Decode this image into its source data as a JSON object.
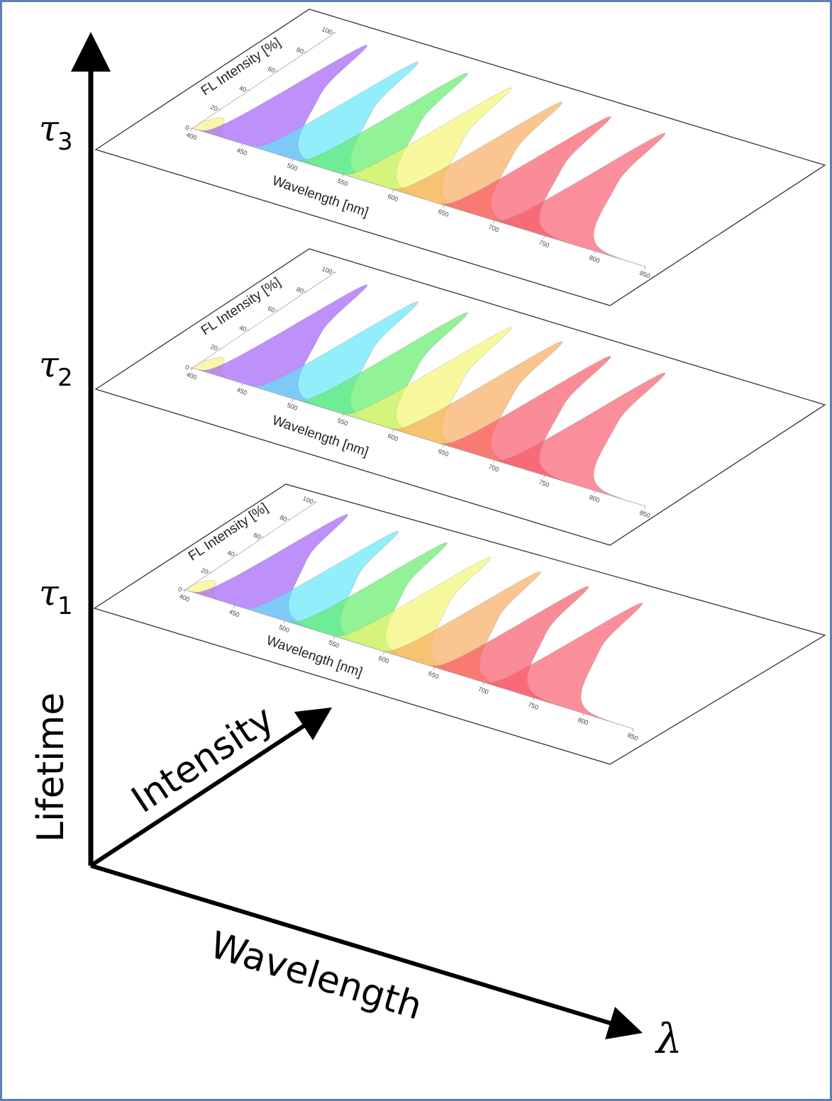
{
  "axes": {
    "vertical_label": "Lifetime",
    "depth_label": "Intensity",
    "horizontal_label": "Wavelength",
    "horizontal_symbol": "λ"
  },
  "levels": [
    {
      "symbol": "τ",
      "subscript": "3"
    },
    {
      "symbol": "τ",
      "subscript": "2"
    },
    {
      "symbol": "τ",
      "subscript": "1"
    }
  ],
  "plot": {
    "x_label": "Wavelength [nm]",
    "y_label": "FL Intensity [%]",
    "x_ticks": [
      "400",
      "450",
      "500",
      "550",
      "600",
      "650",
      "700",
      "750",
      "800",
      "850"
    ],
    "y_ticks": [
      "0",
      "20",
      "40",
      "60",
      "80",
      "100"
    ],
    "x_range": [
      400,
      850
    ],
    "y_range": [
      0,
      100
    ]
  },
  "spectra": [
    {
      "peak_nm": 410,
      "peak_pct": 14,
      "color": "#f6f28c"
    },
    {
      "peak_nm": 434,
      "peak_pct": 98,
      "color": "#9d5cf7"
    },
    {
      "peak_nm": 486,
      "peak_pct": 97,
      "color": "#5ee6f8"
    },
    {
      "peak_nm": 531,
      "peak_pct": 100,
      "color": "#5fec66"
    },
    {
      "peak_nm": 576,
      "peak_pct": 99,
      "color": "#f4f570"
    },
    {
      "peak_nm": 625,
      "peak_pct": 100,
      "color": "#f8aa5c"
    },
    {
      "peak_nm": 673,
      "peak_pct": 100,
      "color": "#f85566"
    },
    {
      "peak_nm": 727,
      "peak_pct": 100,
      "color": "#f85a6c"
    }
  ],
  "colors": {
    "frame": "#5b82b8",
    "axis": "#000000",
    "plane_edge": "#333333"
  }
}
